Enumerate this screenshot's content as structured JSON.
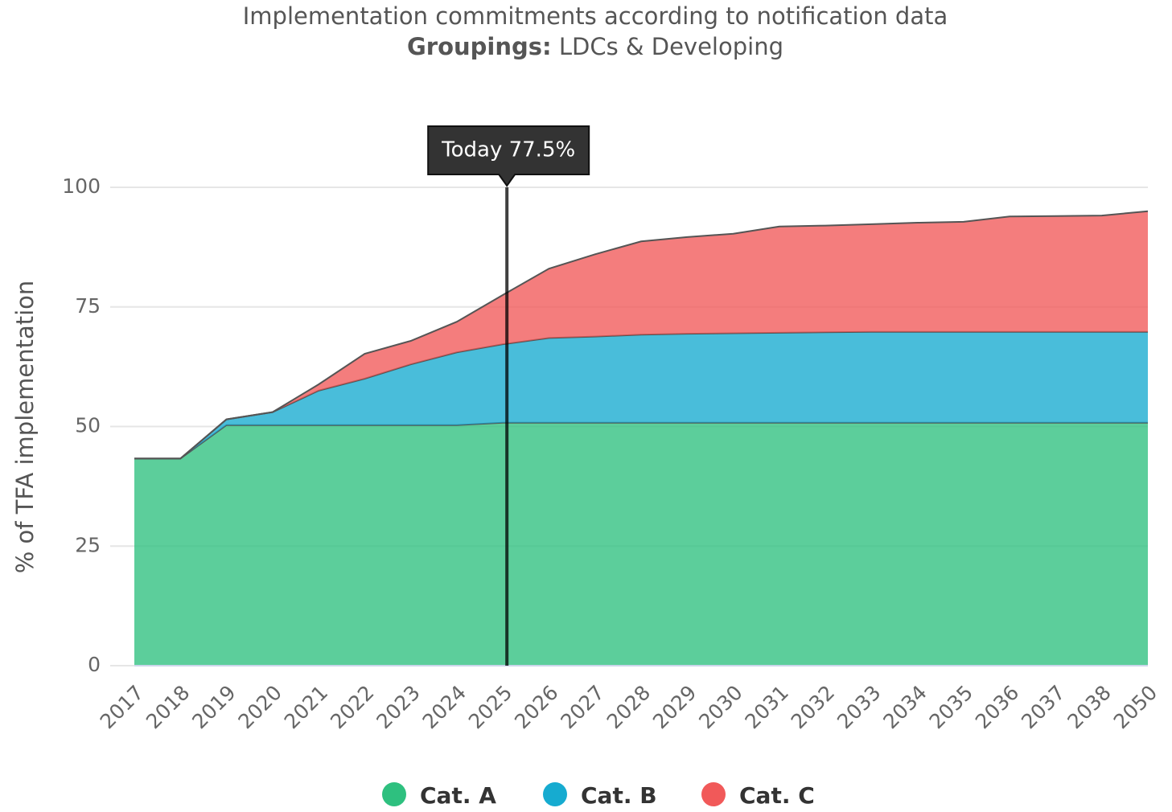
{
  "chart_data": {
    "type": "area",
    "stacked": true,
    "title": "Implementation commitments according to notification data",
    "subtitle_label": "Groupings:",
    "subtitle": "LDCs & Developing",
    "y_label": "% of TFA implementation",
    "categories": [
      "2017",
      "2018",
      "2019",
      "2020",
      "2021",
      "2022",
      "2023",
      "2024",
      "2025",
      "2026",
      "2027",
      "2028",
      "2029",
      "2030",
      "2031",
      "2032",
      "2033",
      "2034",
      "2035",
      "2036",
      "2037",
      "2038",
      "2050"
    ],
    "series": [
      {
        "name": "Cat. A",
        "color": "#2ec07f",
        "values": [
          43.3,
          43.3,
          50.3,
          50.3,
          50.3,
          50.3,
          50.3,
          50.3,
          50.8,
          50.8,
          50.8,
          50.8,
          50.8,
          50.8,
          50.8,
          50.8,
          50.8,
          50.8,
          50.8,
          50.8,
          50.8,
          50.8,
          50.8
        ]
      },
      {
        "name": "Cat. B",
        "color": "#16abd0",
        "values": [
          0,
          0,
          1.2,
          2.7,
          7.2,
          9.7,
          12.7,
          15.2,
          16.4,
          17.7,
          18.0,
          18.4,
          18.6,
          18.7,
          18.8,
          18.9,
          19.0,
          19.0,
          19.0,
          19.0,
          19.0,
          19.0,
          19.0
        ]
      },
      {
        "name": "Cat. C",
        "color": "#f15959",
        "values": [
          0,
          0,
          0,
          0,
          1.3,
          5.2,
          4.9,
          6.4,
          10.3,
          14.5,
          17.2,
          19.5,
          20.2,
          20.8,
          22.2,
          22.3,
          22.5,
          22.8,
          23.0,
          24.1,
          24.2,
          24.3,
          25.2
        ]
      }
    ],
    "annotation": {
      "text": "Today 77.5%",
      "x": "2025"
    },
    "ylim": [
      0,
      100
    ],
    "yticks": [
      0,
      25,
      50,
      75,
      100
    ],
    "grid": true,
    "legend": "bottom"
  }
}
